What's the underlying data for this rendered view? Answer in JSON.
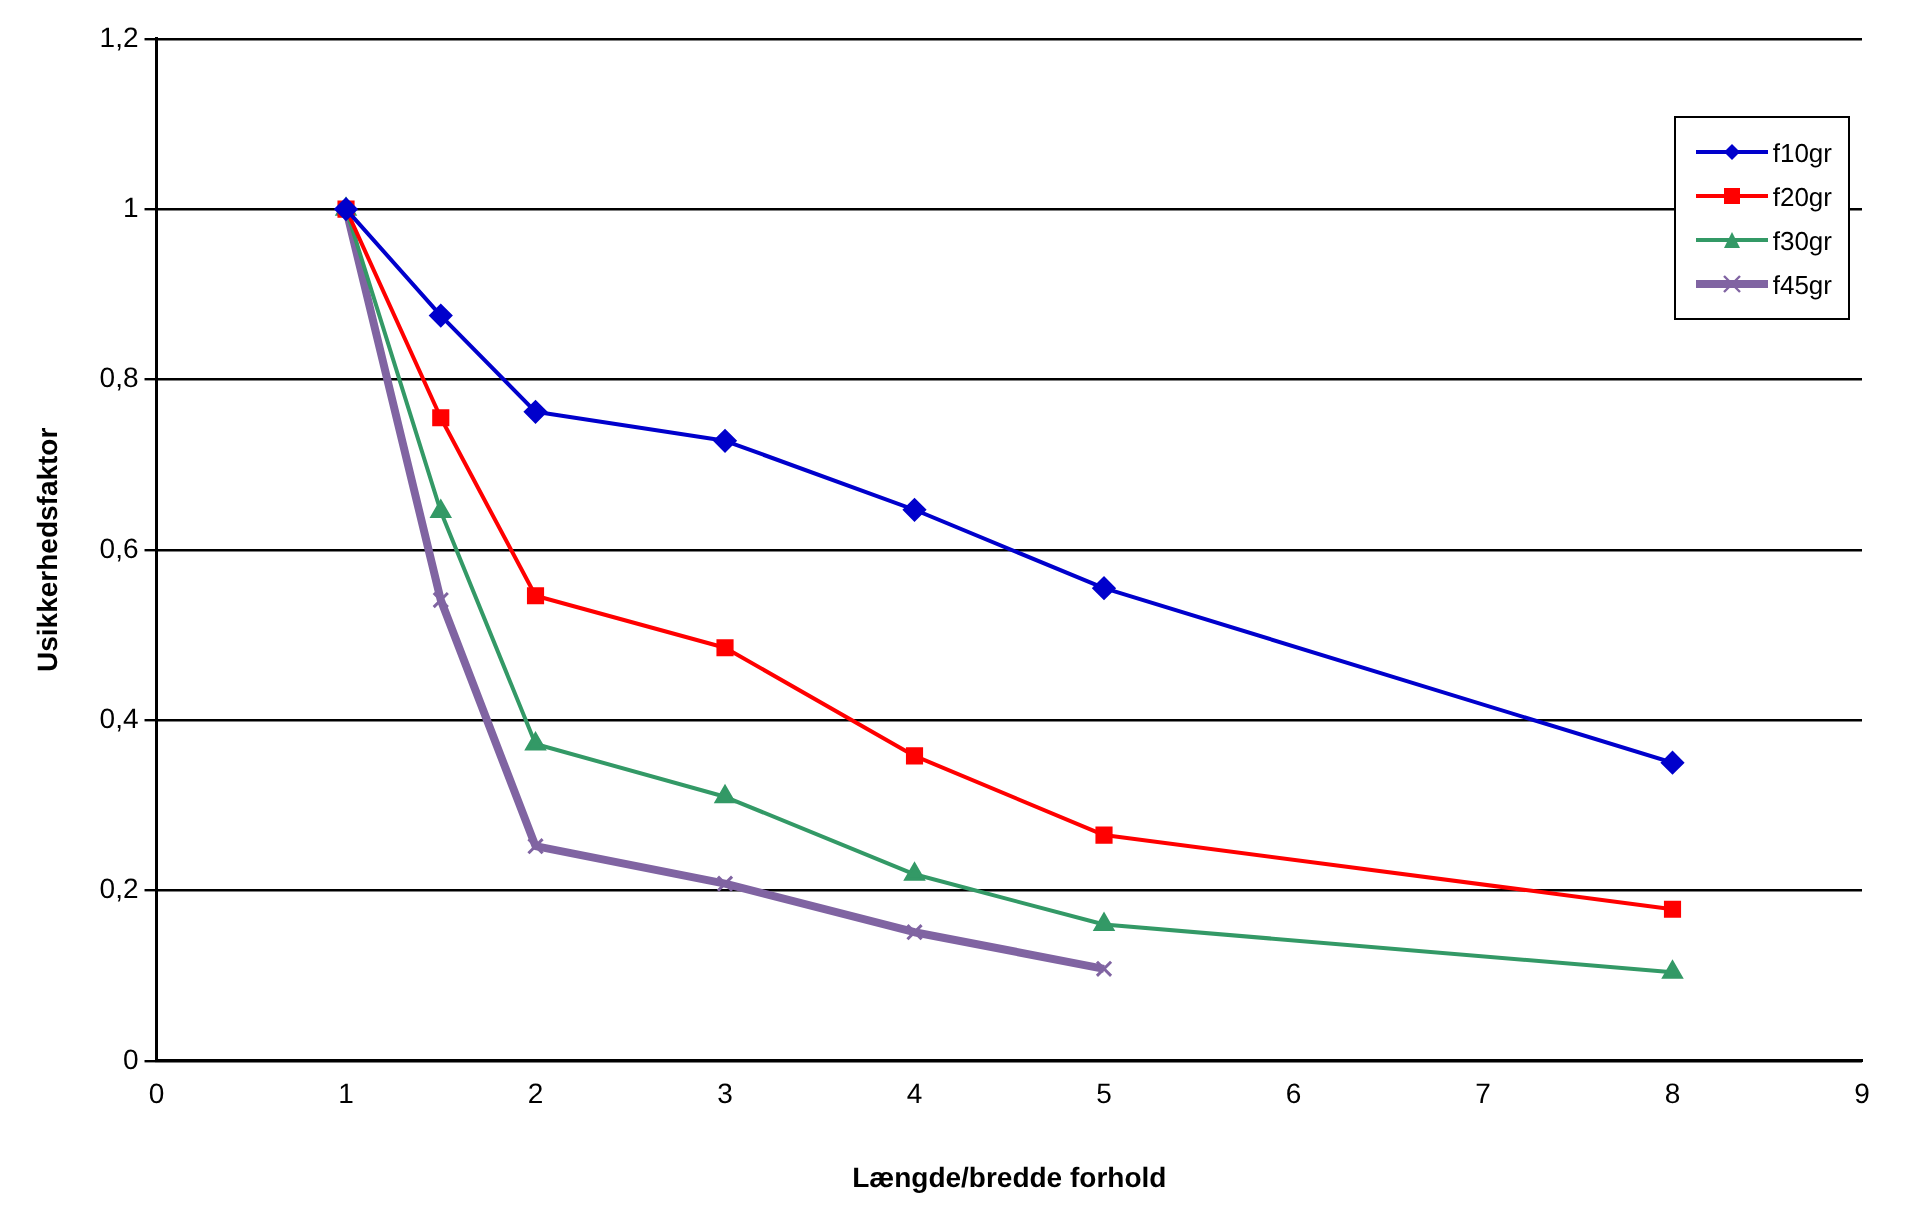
{
  "chart_data": {
    "type": "line",
    "xlabel": "Længde/bredde forhold",
    "ylabel": "Usikkerhedsfaktor",
    "xlim": [
      0,
      9
    ],
    "xticks": [
      0,
      1,
      2,
      3,
      4,
      5,
      6,
      7,
      8,
      9
    ],
    "ylim": [
      0,
      1.2
    ],
    "yticks": [
      {
        "value": 0,
        "label": "0"
      },
      {
        "value": 0.2,
        "label": "0,2"
      },
      {
        "value": 0.4,
        "label": "0,4"
      },
      {
        "value": 0.6,
        "label": "0,6"
      },
      {
        "value": 0.8,
        "label": "0,8"
      },
      {
        "value": 1,
        "label": "1"
      },
      {
        "value": 1.2,
        "label": "1,2"
      }
    ],
    "grid": "y",
    "legend": "top right",
    "line_style": "solid",
    "series": [
      {
        "name": "f10gr",
        "color": "#0000cc",
        "marker": "diamond",
        "x": [
          1,
          1.5,
          2,
          3,
          4,
          5,
          8
        ],
        "values": [
          1,
          0.875,
          0.762,
          0.728,
          0.647,
          0.555,
          0.35
        ]
      },
      {
        "name": "f20gr",
        "color": "#ff0000",
        "marker": "square",
        "x": [
          1,
          1.5,
          2,
          3,
          4,
          5,
          8
        ],
        "values": [
          1,
          0.755,
          0.546,
          0.485,
          0.358,
          0.265,
          0.178
        ]
      },
      {
        "name": "f30gr",
        "color": "#339966",
        "marker": "triangle",
        "x": [
          1,
          1.5,
          2,
          3,
          4,
          5,
          8
        ],
        "values": [
          1,
          0.645,
          0.372,
          0.31,
          0.219,
          0.16,
          0.104
        ]
      },
      {
        "name": "f45gr",
        "color": "#8064a2",
        "marker": "cross",
        "x": [
          1,
          1.5,
          2,
          3,
          4,
          5
        ],
        "values": [
          1,
          0.541,
          0.252,
          0.208,
          0.151,
          0.108
        ]
      }
    ]
  }
}
